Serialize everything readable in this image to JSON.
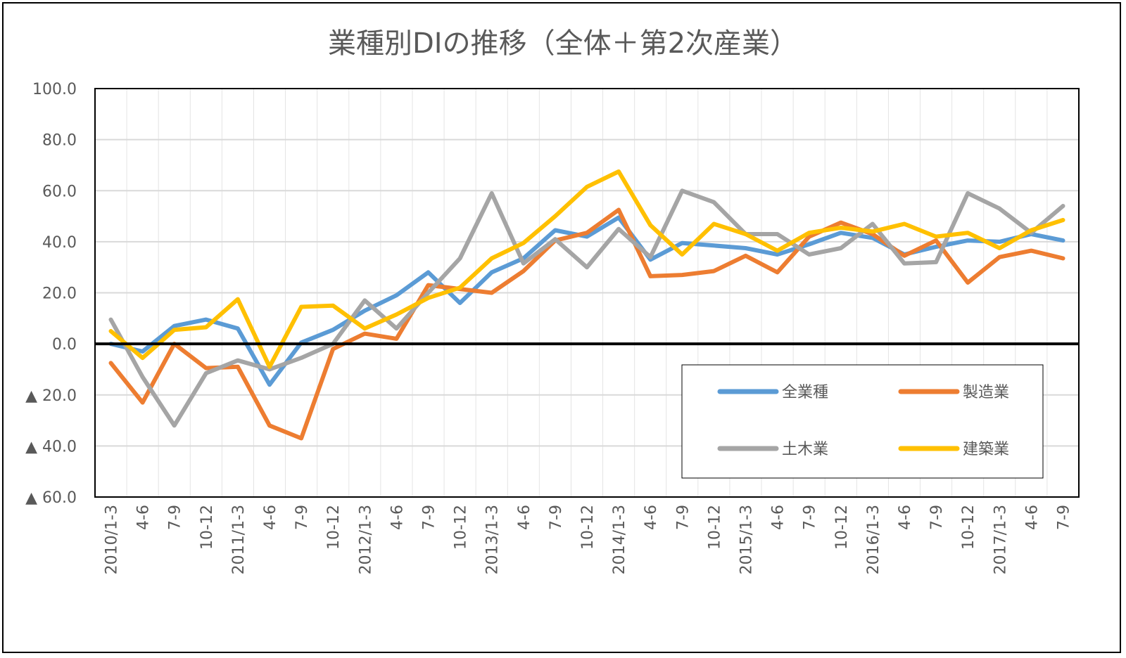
{
  "chart_data": {
    "type": "line",
    "title": "業種別DIの推移（全体＋第2次産業）",
    "xlabel": "",
    "ylabel": "",
    "ylim": [
      -60,
      100
    ],
    "y_ticks": [
      {
        "value": 100,
        "label": "100.0"
      },
      {
        "value": 80,
        "label": "80.0"
      },
      {
        "value": 60,
        "label": "60.0"
      },
      {
        "value": 40,
        "label": "40.0"
      },
      {
        "value": 20,
        "label": "20.0"
      },
      {
        "value": 0,
        "label": "0.0"
      },
      {
        "value": -20,
        "label": "▲ 20.0"
      },
      {
        "value": -40,
        "label": "▲ 40.0"
      },
      {
        "value": -60,
        "label": "▲ 60.0"
      }
    ],
    "grid": true,
    "legend_position": "bottom-right",
    "categories": [
      "2010/1-3",
      "4-6",
      "7-9",
      "10-12",
      "2011/1-3",
      "4-6",
      "7-9",
      "10-12",
      "2012/1-3",
      "4-6",
      "7-9",
      "10-12",
      "2013/1-3",
      "4-6",
      "7-9",
      "10-12",
      "2014/1-3",
      "4-6",
      "7-9",
      "10-12",
      "2015/1-3",
      "4-6",
      "7-9",
      "10-12",
      "2016/1-3",
      "4-6",
      "7-9",
      "10-12",
      "2017/1-3",
      "4-6",
      "7-9"
    ],
    "series": [
      {
        "name": "全業種",
        "color": "#5B9BD5",
        "values": [
          0.0,
          -3.0,
          7.0,
          9.5,
          6.0,
          -16.0,
          0.5,
          5.5,
          13.0,
          19.0,
          28.0,
          16.0,
          28.0,
          33.5,
          44.5,
          42.0,
          49.5,
          33.0,
          39.5,
          38.5,
          37.5,
          35.0,
          39.0,
          43.5,
          41.5,
          35.0,
          38.0,
          40.5,
          40.0,
          43.0,
          40.5
        ]
      },
      {
        "name": "製造業",
        "color": "#ED7D31",
        "values": [
          -7.5,
          -23.0,
          0.0,
          -9.5,
          -9.0,
          -32.0,
          -37.0,
          -2.0,
          4.0,
          2.0,
          23.0,
          21.5,
          20.0,
          28.5,
          40.5,
          43.5,
          52.5,
          26.5,
          27.0,
          28.5,
          34.5,
          28.0,
          42.0,
          47.5,
          43.0,
          34.5,
          40.5,
          24.0,
          34.0,
          36.5,
          33.5
        ]
      },
      {
        "name": "土木業",
        "color": "#A5A5A5",
        "values": [
          9.5,
          -13.0,
          -32.0,
          -11.5,
          -6.5,
          -10.0,
          -5.5,
          0.0,
          17.0,
          6.0,
          20.0,
          33.5,
          59.0,
          31.5,
          41.0,
          30.0,
          45.0,
          34.0,
          60.0,
          55.5,
          43.0,
          43.0,
          35.0,
          37.5,
          47.0,
          31.5,
          32.0,
          59.0,
          53.0,
          43.5,
          54.0
        ]
      },
      {
        "name": "建築業",
        "color": "#FFC000",
        "values": [
          5.0,
          -5.5,
          5.5,
          6.5,
          17.5,
          -9.0,
          14.5,
          15.0,
          6.0,
          11.5,
          18.0,
          22.0,
          33.5,
          39.5,
          50.0,
          61.5,
          67.5,
          46.5,
          35.0,
          47.0,
          43.0,
          36.5,
          43.5,
          45.5,
          44.0,
          47.0,
          42.0,
          43.5,
          37.5,
          44.5,
          48.5
        ]
      }
    ]
  }
}
